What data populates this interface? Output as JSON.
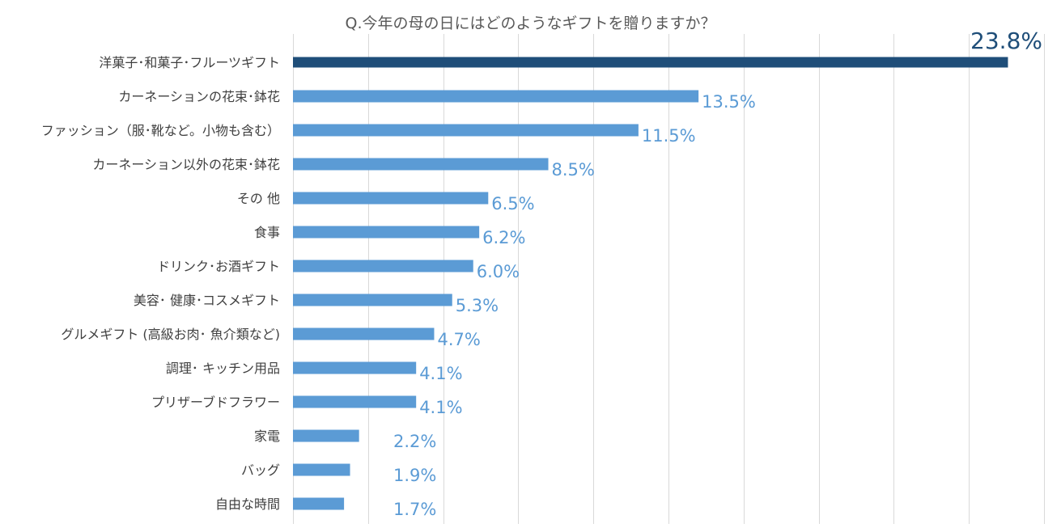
{
  "chart_data": {
    "type": "bar",
    "orientation": "horizontal",
    "title": "Q.今年の母の日にはどのようなギフトを贈りますか？",
    "categories": [
      "洋菓子･和菓子･フルーツギフト",
      "カーネーションの花束･鉢花",
      "ファッション（服･靴など。小物も含む）",
      "カーネーション以外の花束･鉢花",
      "その 他",
      "食事",
      "ドリンク･お酒ギフト",
      "美容･ 健康･コスメギフト",
      "グルメギフト (高級お肉･ 魚介類など)",
      "調理･ キッチン用品",
      "プリザーブドフラワー",
      "家電",
      "バッグ",
      "自由な時間"
    ],
    "values": [
      23.8,
      13.5,
      11.5,
      8.5,
      6.5,
      6.2,
      6.0,
      5.3,
      4.7,
      4.1,
      4.1,
      2.2,
      1.9,
      1.7
    ],
    "labels": [
      "23.8%",
      "13.5%",
      "11.5%",
      "8.5%",
      "6.5%",
      "6.2%",
      "6.0%",
      "5.3%",
      "4.7%",
      "4.1%",
      "4.1%",
      "2.2%",
      "1.9%",
      "1.7%"
    ],
    "unit": "%",
    "xlim": [
      0,
      25
    ],
    "xtick_step": 2.5,
    "grid": true,
    "legend": "none",
    "colors": {
      "highlight": "#1F4E79",
      "bar": "#5B9BD5",
      "grid": "#D9D9D9",
      "highlight_label": "#1F4E79",
      "label": "#5B9BD5"
    }
  }
}
